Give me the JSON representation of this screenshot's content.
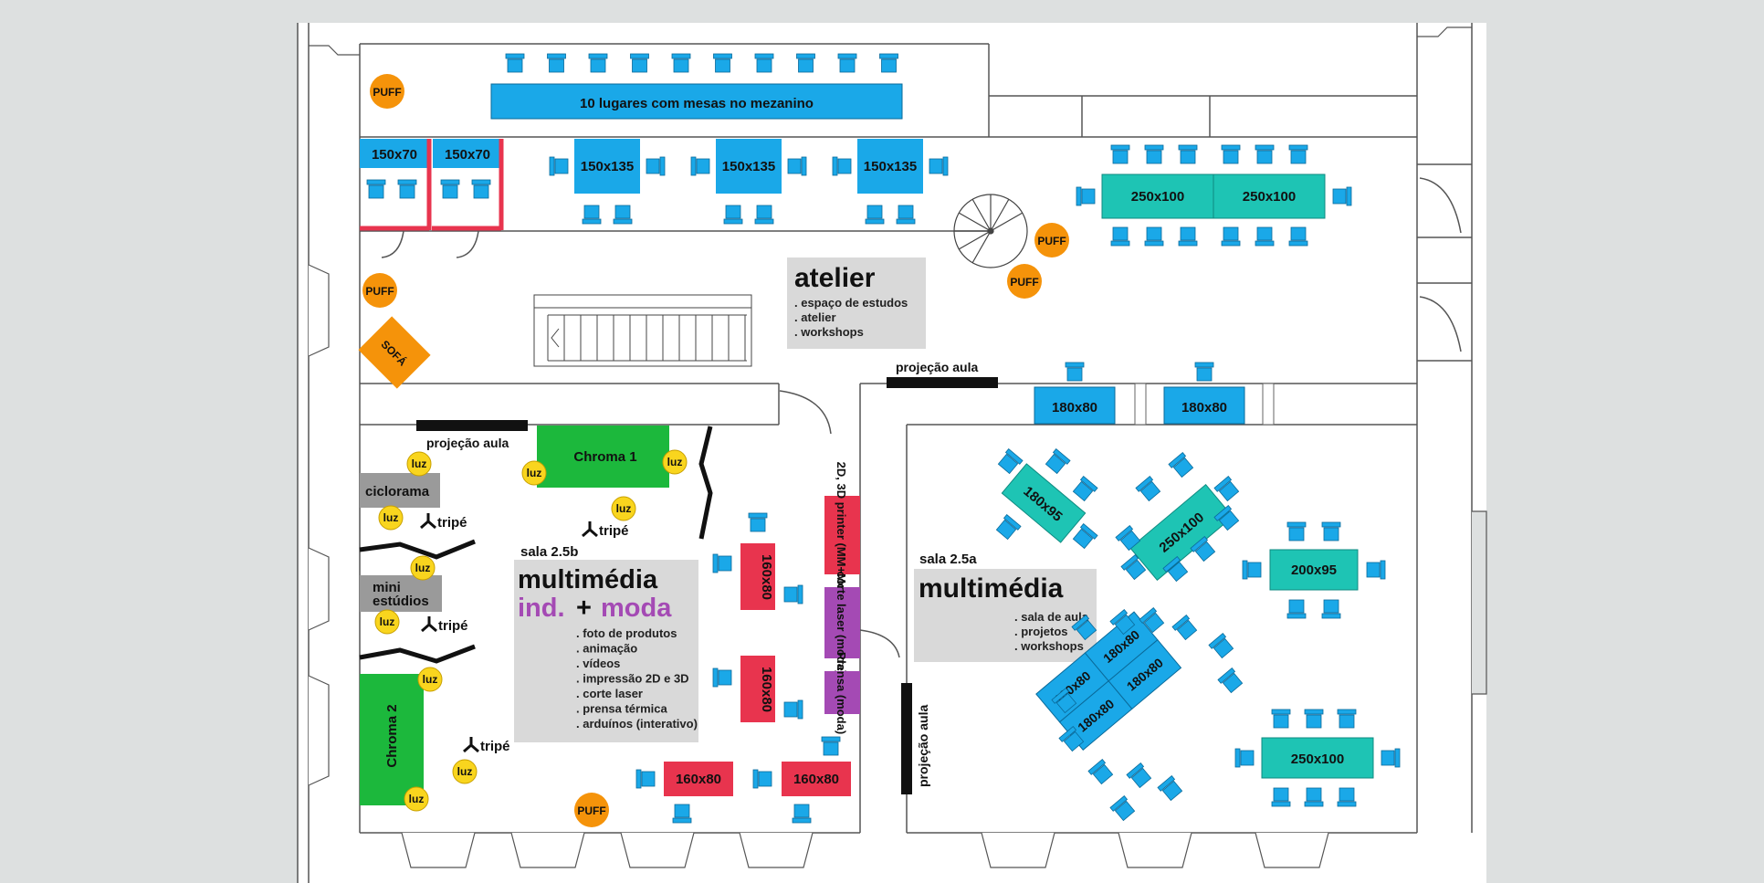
{
  "rooms": {
    "atelier": {
      "title": "atelier",
      "items": [
        ". espaço de estudos",
        ". atelier",
        ". workshops"
      ]
    },
    "sala_2_5b": {
      "code": "sala 2.5b",
      "title_line1": "multimédia",
      "title_ind": "ind.",
      "title_plus": "+",
      "title_moda": "moda",
      "items": [
        ". foto de produtos",
        ". animação",
        ". vídeos",
        ". impressão 2D e 3D",
        ". corte laser",
        ". prensa térmica",
        ". arduínos (interativo)"
      ]
    },
    "sala_2_5a": {
      "code": "sala 2.5a",
      "title": "multimédia",
      "items": [
        ". sala de aula",
        ". projetos",
        ". workshops"
      ]
    }
  },
  "mezzanine": {
    "label": "10 lugares com mesas  no mezanino"
  },
  "tables": {
    "small_a": "150x70",
    "small_b": "150x70",
    "mid_1": "150x135",
    "mid_2": "150x135",
    "mid_3": "150x135",
    "top_right_1": "250x100",
    "top_right_2": "250x100",
    "row_1": "180x80",
    "row_2": "180x80",
    "rot_180x95": "180x95",
    "rot_250x100": "250x100",
    "right_200x95": "200x95",
    "cluster_1": "180x80",
    "cluster_2": "180x80",
    "cluster_3": "180x80",
    "cluster_4": "180x80",
    "bottom_right": "250x100",
    "red_v1": "160x80",
    "red_v2": "160x80",
    "red_h1": "160x80",
    "red_h2": "160x80"
  },
  "stations": {
    "printer": "2D, 3D printer (MM+Moda)",
    "laser": "corte laser (moda)",
    "prensa": "Prensa (moda)"
  },
  "furniture": {
    "puff": "PUFF",
    "sofa": "SOFÁ",
    "luz": "luz",
    "tripe": "tripé"
  },
  "areas": {
    "chroma1": "Chroma 1",
    "chroma2": "Chroma 2",
    "ciclorama": "ciclorama",
    "mini_estudios_1": "mini",
    "mini_estudios_2": "estúdios"
  },
  "projection": "projeção aula",
  "colors": {
    "blue": "#1aa8e8",
    "teal": "#1ec4b4",
    "red": "#e8344e",
    "purple": "#a44ab4",
    "green": "#1cb83c",
    "orange": "#f5930a",
    "yellow": "#f9d51e",
    "grey_panel": "#d9d9d9",
    "bg": "#dde0e0"
  }
}
